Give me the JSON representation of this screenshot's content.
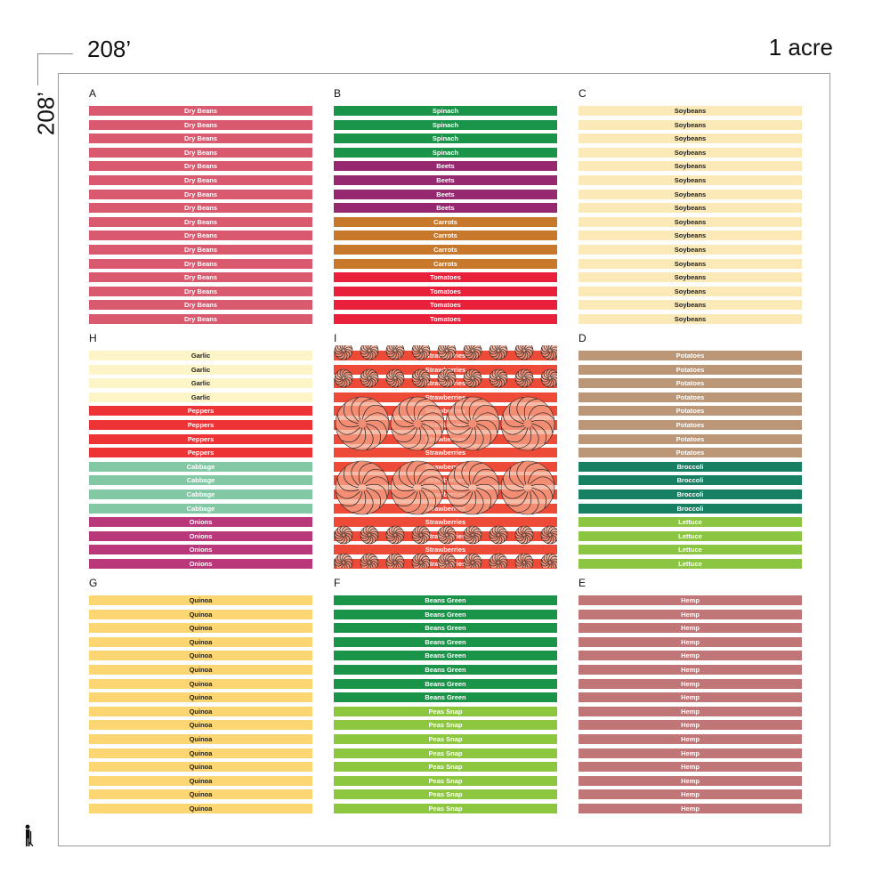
{
  "header": {
    "dimension_top": "208’",
    "dimension_left": "208’",
    "area_label": "1 acre"
  },
  "plots": [
    {
      "letter": "A",
      "rows": [
        {
          "label": "Dry Beans",
          "color": "#d9596f"
        },
        {
          "label": "Dry Beans",
          "color": "#d9596f"
        },
        {
          "label": "Dry Beans",
          "color": "#d9596f"
        },
        {
          "label": "Dry Beans",
          "color": "#d9596f"
        },
        {
          "label": "Dry Beans",
          "color": "#d9596f"
        },
        {
          "label": "Dry Beans",
          "color": "#d9596f"
        },
        {
          "label": "Dry Beans",
          "color": "#d9596f"
        },
        {
          "label": "Dry Beans",
          "color": "#d9596f"
        },
        {
          "label": "Dry Beans",
          "color": "#d9596f"
        },
        {
          "label": "Dry Beans",
          "color": "#d9596f"
        },
        {
          "label": "Dry Beans",
          "color": "#d9596f"
        },
        {
          "label": "Dry Beans",
          "color": "#d9596f"
        },
        {
          "label": "Dry Beans",
          "color": "#d9596f"
        },
        {
          "label": "Dry Beans",
          "color": "#d9596f"
        },
        {
          "label": "Dry Beans",
          "color": "#d9596f"
        },
        {
          "label": "Dry Beans",
          "color": "#d9596f"
        }
      ]
    },
    {
      "letter": "B",
      "rows": [
        {
          "label": "Spinach",
          "color": "#1a9448"
        },
        {
          "label": "Spinach",
          "color": "#1a9448"
        },
        {
          "label": "Spinach",
          "color": "#1a9448"
        },
        {
          "label": "Spinach",
          "color": "#1a9448"
        },
        {
          "label": "Beets",
          "color": "#962870"
        },
        {
          "label": "Beets",
          "color": "#962870"
        },
        {
          "label": "Beets",
          "color": "#962870"
        },
        {
          "label": "Beets",
          "color": "#962870"
        },
        {
          "label": "Carrots",
          "color": "#c8782a"
        },
        {
          "label": "Carrots",
          "color": "#c8782a"
        },
        {
          "label": "Carrots",
          "color": "#c8782a"
        },
        {
          "label": "Carrots",
          "color": "#c8782a"
        },
        {
          "label": "Tomatoes",
          "color": "#e8203a"
        },
        {
          "label": "Tomatoes",
          "color": "#e8203a"
        },
        {
          "label": "Tomatoes",
          "color": "#e8203a"
        },
        {
          "label": "Tomatoes",
          "color": "#e8203a"
        }
      ]
    },
    {
      "letter": "C",
      "rows": [
        {
          "label": "Soybeans",
          "color": "#fbe9b8",
          "dark": true
        },
        {
          "label": "Soybeans",
          "color": "#fbe9b8",
          "dark": true
        },
        {
          "label": "Soybeans",
          "color": "#fbe9b8",
          "dark": true
        },
        {
          "label": "Soybeans",
          "color": "#fbe9b8",
          "dark": true
        },
        {
          "label": "Soybeans",
          "color": "#fbe9b8",
          "dark": true
        },
        {
          "label": "Soybeans",
          "color": "#fbe9b8",
          "dark": true
        },
        {
          "label": "Soybeans",
          "color": "#fbe9b8",
          "dark": true
        },
        {
          "label": "Soybeans",
          "color": "#fbe9b8",
          "dark": true
        },
        {
          "label": "Soybeans",
          "color": "#fbe9b8",
          "dark": true
        },
        {
          "label": "Soybeans",
          "color": "#fbe9b8",
          "dark": true
        },
        {
          "label": "Soybeans",
          "color": "#fbe9b8",
          "dark": true
        },
        {
          "label": "Soybeans",
          "color": "#fbe9b8",
          "dark": true
        },
        {
          "label": "Soybeans",
          "color": "#fbe9b8",
          "dark": true
        },
        {
          "label": "Soybeans",
          "color": "#fbe9b8",
          "dark": true
        },
        {
          "label": "Soybeans",
          "color": "#fbe9b8",
          "dark": true
        },
        {
          "label": "Soybeans",
          "color": "#fbe9b8",
          "dark": true
        }
      ]
    },
    {
      "letter": "H",
      "rows": [
        {
          "label": "Garlic",
          "color": "#fdf5c8",
          "dark": true
        },
        {
          "label": "Garlic",
          "color": "#fdf5c8",
          "dark": true
        },
        {
          "label": "Garlic",
          "color": "#fdf5c8",
          "dark": true
        },
        {
          "label": "Garlic",
          "color": "#fdf5c8",
          "dark": true
        },
        {
          "label": "Peppers",
          "color": "#ee3336"
        },
        {
          "label": "Peppers",
          "color": "#ee3336"
        },
        {
          "label": "Peppers",
          "color": "#ee3336"
        },
        {
          "label": "Peppers",
          "color": "#ee3336"
        },
        {
          "label": "Cabbage",
          "color": "#82c8a4"
        },
        {
          "label": "Cabbage",
          "color": "#82c8a4"
        },
        {
          "label": "Cabbage",
          "color": "#82c8a4"
        },
        {
          "label": "Cabbage",
          "color": "#82c8a4"
        },
        {
          "label": "Onions",
          "color": "#b8387a"
        },
        {
          "label": "Onions",
          "color": "#b8387a"
        },
        {
          "label": "Onions",
          "color": "#b8387a"
        },
        {
          "label": "Onions",
          "color": "#b8387a"
        }
      ]
    },
    {
      "letter": "I",
      "pattern": true,
      "rows": [
        {
          "label": "Strawberries",
          "color": "#ee4a38"
        },
        {
          "label": "Strawberries",
          "color": "#ee4a38"
        },
        {
          "label": "Strawberries",
          "color": "#ee4a38"
        },
        {
          "label": "Strawberries",
          "color": "#ee4a38"
        },
        {
          "label": "Strawberries",
          "color": "#ee4a38"
        },
        {
          "label": "Strawberries",
          "color": "#ee4a38"
        },
        {
          "label": "Strawberries",
          "color": "#ee4a38"
        },
        {
          "label": "Strawberries",
          "color": "#ee4a38"
        },
        {
          "label": "Strawberries",
          "color": "#ee4a38"
        },
        {
          "label": "Strawberries",
          "color": "#ee4a38"
        },
        {
          "label": "Strawberries",
          "color": "#ee4a38"
        },
        {
          "label": "Strawberries",
          "color": "#ee4a38"
        },
        {
          "label": "Strawberries",
          "color": "#ee4a38"
        },
        {
          "label": "Strawberries",
          "color": "#ee4a38"
        },
        {
          "label": "Strawberries",
          "color": "#ee4a38"
        },
        {
          "label": "Strawberries",
          "color": "#ee4a38"
        }
      ]
    },
    {
      "letter": "D",
      "rows": [
        {
          "label": "Potatoes",
          "color": "#bb9777"
        },
        {
          "label": "Potatoes",
          "color": "#bb9777"
        },
        {
          "label": "Potatoes",
          "color": "#bb9777"
        },
        {
          "label": "Potatoes",
          "color": "#bb9777"
        },
        {
          "label": "Potatoes",
          "color": "#bb9777"
        },
        {
          "label": "Potatoes",
          "color": "#bb9777"
        },
        {
          "label": "Potatoes",
          "color": "#bb9777"
        },
        {
          "label": "Potatoes",
          "color": "#bb9777"
        },
        {
          "label": "Broccoli",
          "color": "#178062"
        },
        {
          "label": "Broccoli",
          "color": "#178062"
        },
        {
          "label": "Broccoli",
          "color": "#178062"
        },
        {
          "label": "Broccoli",
          "color": "#178062"
        },
        {
          "label": "Lettuce",
          "color": "#8bc542"
        },
        {
          "label": "Lettuce",
          "color": "#8bc542"
        },
        {
          "label": "Lettuce",
          "color": "#8bc542"
        },
        {
          "label": "Lettuce",
          "color": "#8bc542"
        }
      ]
    },
    {
      "letter": "G",
      "rows": [
        {
          "label": "Quinoa",
          "color": "#fcd672",
          "dark": true
        },
        {
          "label": "Quinoa",
          "color": "#fcd672",
          "dark": true
        },
        {
          "label": "Quinoa",
          "color": "#fcd672",
          "dark": true
        },
        {
          "label": "Quinoa",
          "color": "#fcd672",
          "dark": true
        },
        {
          "label": "Quinoa",
          "color": "#fcd672",
          "dark": true
        },
        {
          "label": "Quinoa",
          "color": "#fcd672",
          "dark": true
        },
        {
          "label": "Quinoa",
          "color": "#fcd672",
          "dark": true
        },
        {
          "label": "Quinoa",
          "color": "#fcd672",
          "dark": true
        },
        {
          "label": "Quinoa",
          "color": "#fcd672",
          "dark": true
        },
        {
          "label": "Quinoa",
          "color": "#fcd672",
          "dark": true
        },
        {
          "label": "Quinoa",
          "color": "#fcd672",
          "dark": true
        },
        {
          "label": "Quinoa",
          "color": "#fcd672",
          "dark": true
        },
        {
          "label": "Quinoa",
          "color": "#fcd672",
          "dark": true
        },
        {
          "label": "Quinoa",
          "color": "#fcd672",
          "dark": true
        },
        {
          "label": "Quinoa",
          "color": "#fcd672",
          "dark": true
        },
        {
          "label": "Quinoa",
          "color": "#fcd672",
          "dark": true
        }
      ]
    },
    {
      "letter": "F",
      "rows": [
        {
          "label": "Beans Green",
          "color": "#1a9448"
        },
        {
          "label": "Beans Green",
          "color": "#1a9448"
        },
        {
          "label": "Beans Green",
          "color": "#1a9448"
        },
        {
          "label": "Beans Green",
          "color": "#1a9448"
        },
        {
          "label": "Beans Green",
          "color": "#1a9448"
        },
        {
          "label": "Beans Green",
          "color": "#1a9448"
        },
        {
          "label": "Beans Green",
          "color": "#1a9448"
        },
        {
          "label": "Beans Green",
          "color": "#1a9448"
        },
        {
          "label": "Peas Snap",
          "color": "#8dc63f"
        },
        {
          "label": "Peas Snap",
          "color": "#8dc63f"
        },
        {
          "label": "Peas Snap",
          "color": "#8dc63f"
        },
        {
          "label": "Peas Snap",
          "color": "#8dc63f"
        },
        {
          "label": "Peas Snap",
          "color": "#8dc63f"
        },
        {
          "label": "Peas Snap",
          "color": "#8dc63f"
        },
        {
          "label": "Peas Snap",
          "color": "#8dc63f"
        },
        {
          "label": "Peas Snap",
          "color": "#8dc63f"
        }
      ]
    },
    {
      "letter": "E",
      "rows": [
        {
          "label": "Hemp",
          "color": "#c07677"
        },
        {
          "label": "Hemp",
          "color": "#c07677"
        },
        {
          "label": "Hemp",
          "color": "#c07677"
        },
        {
          "label": "Hemp",
          "color": "#c07677"
        },
        {
          "label": "Hemp",
          "color": "#c07677"
        },
        {
          "label": "Hemp",
          "color": "#c07677"
        },
        {
          "label": "Hemp",
          "color": "#c07677"
        },
        {
          "label": "Hemp",
          "color": "#c07677"
        },
        {
          "label": "Hemp",
          "color": "#c07677"
        },
        {
          "label": "Hemp",
          "color": "#c07677"
        },
        {
          "label": "Hemp",
          "color": "#c07677"
        },
        {
          "label": "Hemp",
          "color": "#c07677"
        },
        {
          "label": "Hemp",
          "color": "#c07677"
        },
        {
          "label": "Hemp",
          "color": "#c07677"
        },
        {
          "label": "Hemp",
          "color": "#c07677"
        },
        {
          "label": "Hemp",
          "color": "#c07677"
        }
      ]
    }
  ],
  "icons": {
    "scale_figure": "person-icon"
  }
}
